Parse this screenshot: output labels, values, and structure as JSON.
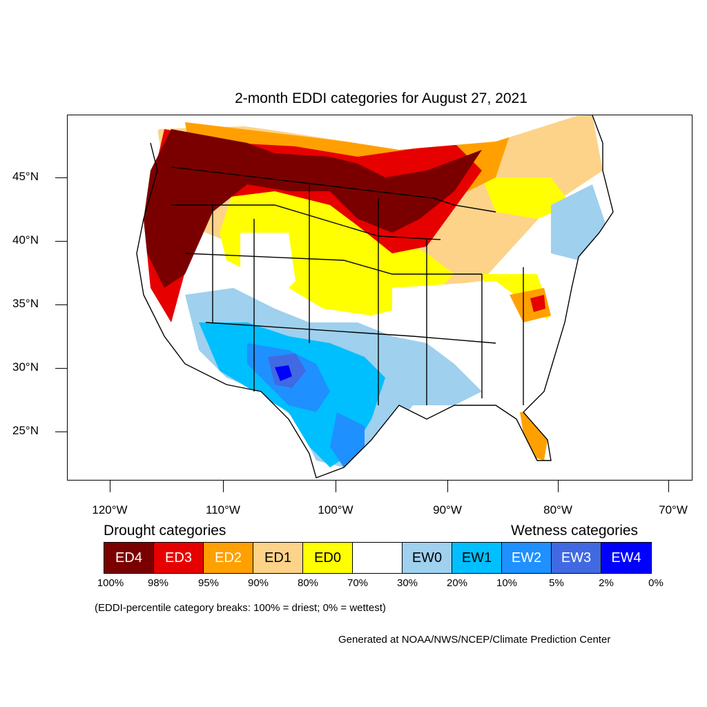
{
  "title": "2-month EDDI categories for August 27, 2021",
  "lat_labels": [
    "45°N",
    "40°N",
    "35°N",
    "30°N",
    "25°N"
  ],
  "lon_labels": [
    "120°W",
    "110°W",
    "100°W",
    "90°W",
    "80°W",
    "70°W"
  ],
  "legend": {
    "drought_title": "Drought categories",
    "wetness_title": "Wetness categories",
    "categories": [
      {
        "label": "ED4",
        "color": "#7a0000",
        "text_color": "#ffffff"
      },
      {
        "label": "ED3",
        "color": "#e60000",
        "text_color": "#ffffff"
      },
      {
        "label": "ED2",
        "color": "#ffa000",
        "text_color": "#ffffff"
      },
      {
        "label": "ED1",
        "color": "#fdd38a",
        "text_color": "#000000"
      },
      {
        "label": "ED0",
        "color": "#ffff00",
        "text_color": "#000000"
      },
      {
        "label": "",
        "color": "#ffffff",
        "text_color": "#000000"
      },
      {
        "label": "EW0",
        "color": "#9fd0ee",
        "text_color": "#000000"
      },
      {
        "label": "EW1",
        "color": "#00bfff",
        "text_color": "#000000"
      },
      {
        "label": "EW2",
        "color": "#1e90ff",
        "text_color": "#ffffff"
      },
      {
        "label": "EW3",
        "color": "#4169e1",
        "text_color": "#ffffff"
      },
      {
        "label": "EW4",
        "color": "#0000ff",
        "text_color": "#ffffff"
      }
    ],
    "percent_breaks": [
      "100%",
      "98%",
      "95%",
      "90%",
      "80%",
      "70%",
      "30%",
      "20%",
      "10%",
      "5%",
      "2%",
      "0%"
    ]
  },
  "note": "(EDDI-percentile category breaks: 100% = driest; 0% = wettest)",
  "credit": "Generated at NOAA/NWS/NCEP/Climate Prediction Center"
}
